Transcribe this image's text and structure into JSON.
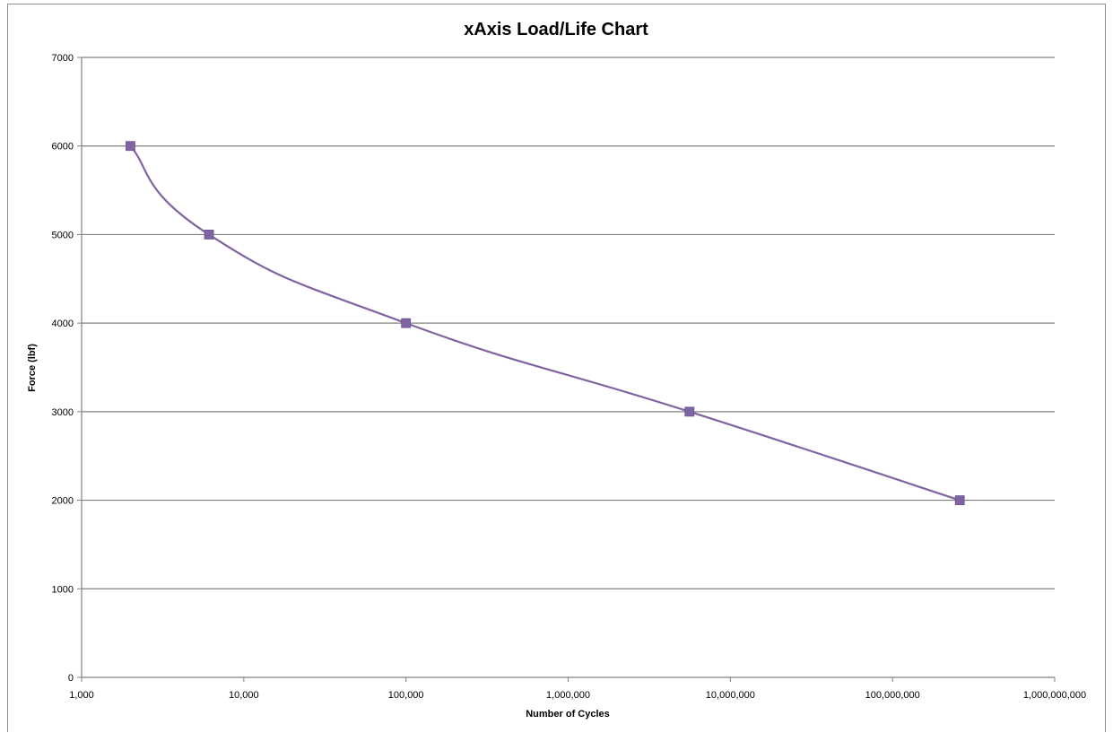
{
  "chart_data": {
    "type": "line",
    "title": "xAxis Load/Life Chart",
    "xlabel": "Number of Cycles",
    "ylabel": "Force (lbf)",
    "x_scale": "log",
    "xlim": [
      1000,
      1000000000
    ],
    "ylim": [
      0,
      7000
    ],
    "x_ticks": [
      1000,
      10000,
      100000,
      1000000,
      10000000,
      100000000,
      1000000000
    ],
    "x_tick_labels": [
      "1,000",
      "10,000",
      "100,000",
      "1,000,000",
      "10,000,000",
      "100,000,000",
      "1,000,000,000"
    ],
    "y_ticks": [
      0,
      1000,
      2000,
      3000,
      4000,
      5000,
      6000,
      7000
    ],
    "y_tick_labels": [
      "0",
      "1000",
      "2000",
      "3000",
      "4000",
      "5000",
      "6000",
      "7000"
    ],
    "grid": "horizontal",
    "legend": "none",
    "smoothed": true,
    "marker": "square",
    "series_color": "#8064a2",
    "marker_color": "#8064a2",
    "series": [
      {
        "x": [
          2000,
          6100,
          100000,
          5600000,
          260000000
        ],
        "y": [
          6000,
          5000,
          4000,
          3000,
          2000
        ]
      }
    ]
  }
}
